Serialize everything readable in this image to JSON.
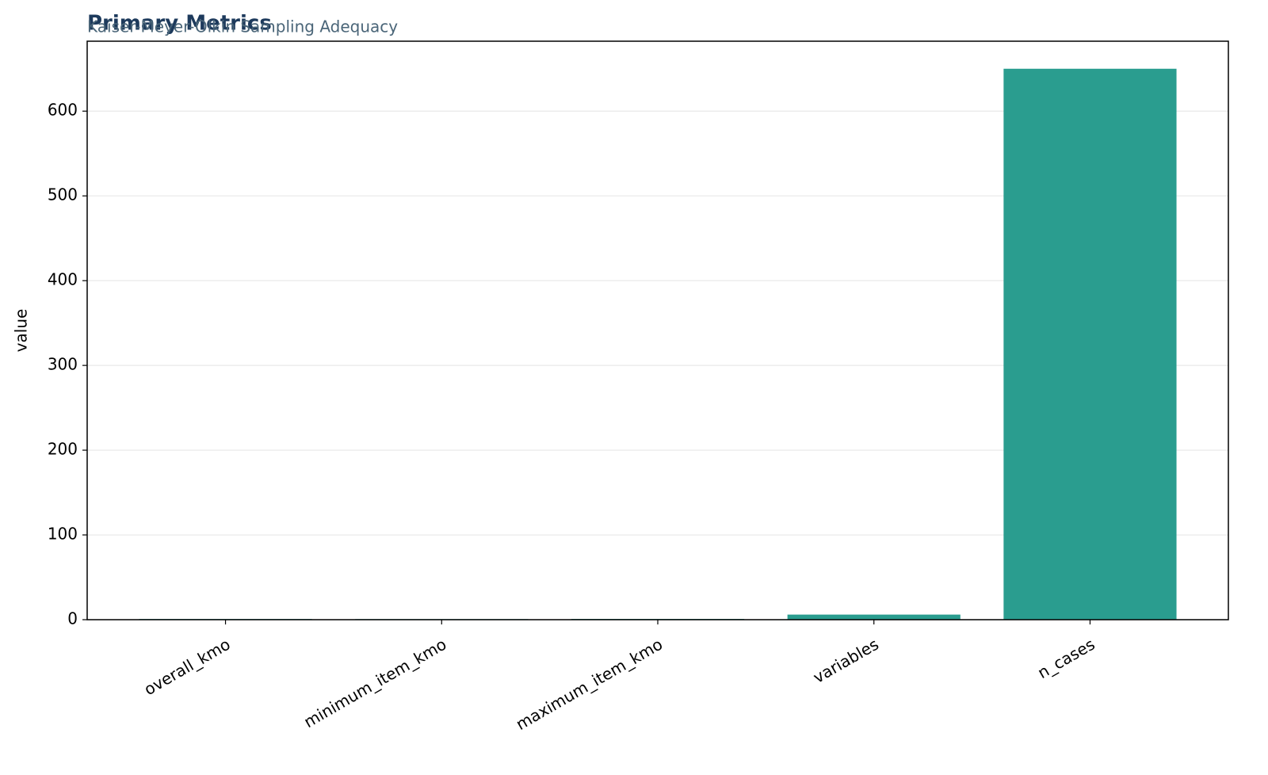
{
  "chart_data": {
    "type": "bar",
    "title": "Primary Metrics",
    "subtitle": "Kaiser-Meyer-Olkin Sampling Adequacy",
    "y_label": "value",
    "categories": [
      "overall_kmo",
      "minimum_item_kmo",
      "maximum_item_kmo",
      "variables",
      "n_cases"
    ],
    "values": [
      0.8,
      0.7,
      0.9,
      6,
      650
    ],
    "color": "#2a9d8f",
    "ylim": [
      0,
      682.5
    ],
    "yticks": [
      0,
      100,
      200,
      300,
      400,
      500,
      600
    ],
    "grid": true
  }
}
